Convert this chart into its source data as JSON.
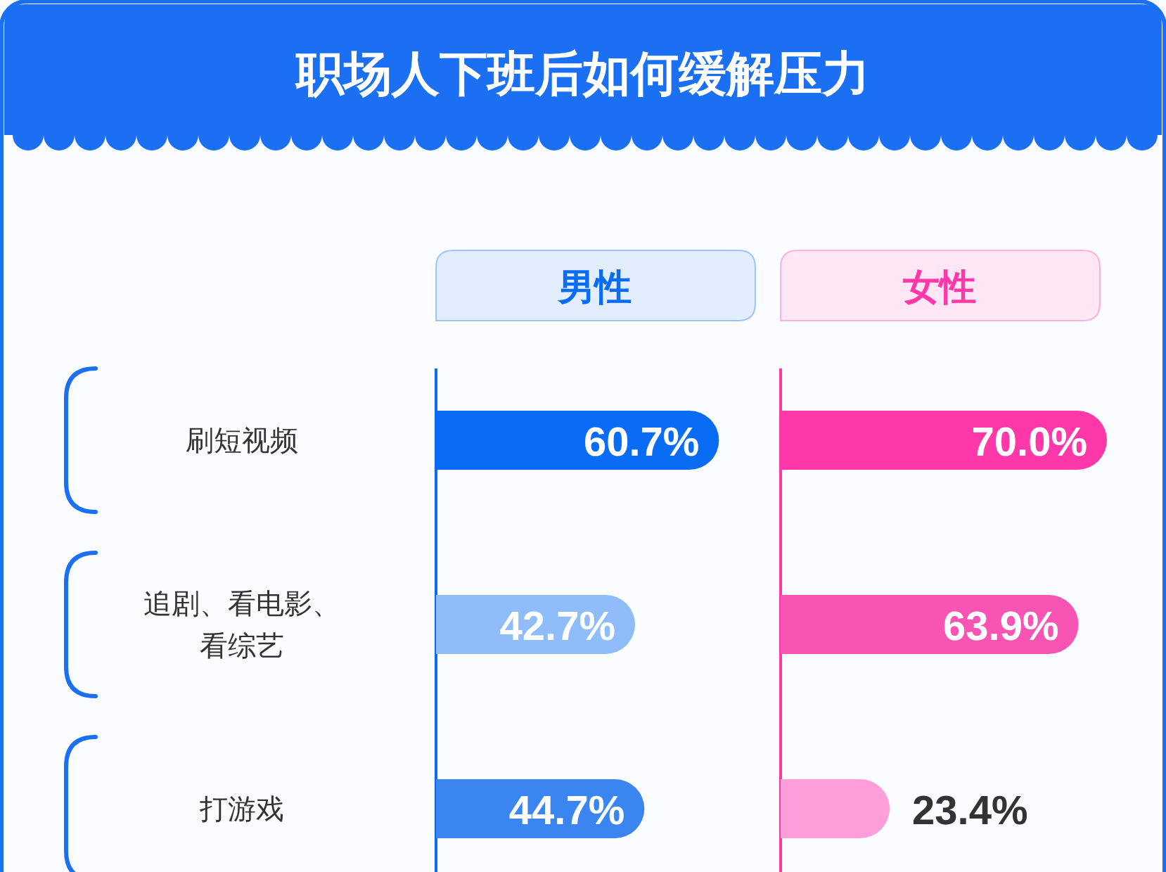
{
  "chart_data": [
    {
      "type": "bar",
      "title": "职场人下班后如何缓解压力",
      "orientation": "horizontal",
      "categories": [
        "刷短视频",
        "追剧、看电影、看综艺",
        "打游戏"
      ],
      "series": [
        {
          "name": "男性",
          "color": "#0a6cf5",
          "colors": [
            "#0a6cf5",
            "#8fbcfa",
            "#3a85f0"
          ],
          "values": [
            60.7,
            42.7,
            44.7
          ],
          "value_labels": [
            "60.7%",
            "42.7%",
            "44.7%"
          ]
        }
      ]
    },
    {
      "type": "bar",
      "orientation": "horizontal",
      "categories": [
        null,
        null,
        null
      ],
      "series": [
        {
          "name": "女性",
          "color": "#ff38aa",
          "colors": [
            "#ff38aa",
            "#f754b4",
            "#ff9fd9"
          ],
          "values": [
            70.0,
            63.9,
            23.4
          ],
          "value_labels": [
            "70.0%",
            "63.9%",
            "23.4%"
          ]
        }
      ]
    }
  ]
}
